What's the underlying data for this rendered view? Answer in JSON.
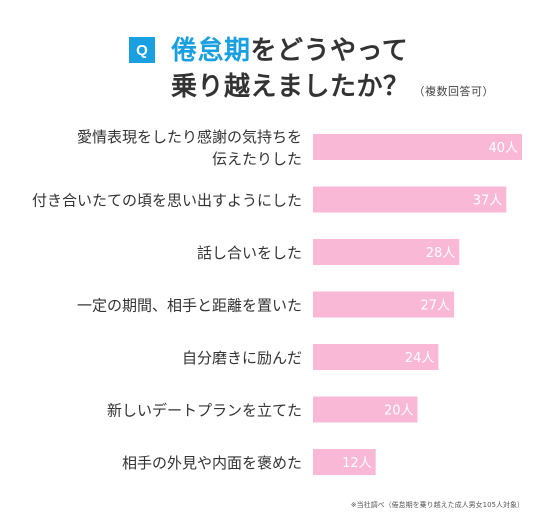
{
  "header": {
    "badge": "Q",
    "title_accent": "倦怠期",
    "title_rest": "をどうやって",
    "title_line2": "乗り越えましたか？",
    "title_note": "（複数回答可）"
  },
  "footnote": "※当社調べ（倦怠期を乗り越えた成人男女105人対象）",
  "chart_data": {
    "type": "bar",
    "orientation": "horizontal",
    "categories": [
      "愛情表現をしたり感謝の気持ちを\n伝えたりした",
      "付き合いたての頃を思い出すようにした",
      "話し合いをした",
      "一定の期間、相手と距離を置いた",
      "自分磨きに励んだ",
      "新しいデートプランを立てた",
      "相手の外見や内面を褒めた"
    ],
    "values": [
      40,
      37,
      28,
      27,
      24,
      20,
      12
    ],
    "value_labels": [
      "40人",
      "37人",
      "28人",
      "27人",
      "24人",
      "20人",
      "12人"
    ],
    "xlim": [
      0,
      40
    ],
    "bar_color": "#f9b8d6",
    "label_color": "#ffffff"
  }
}
